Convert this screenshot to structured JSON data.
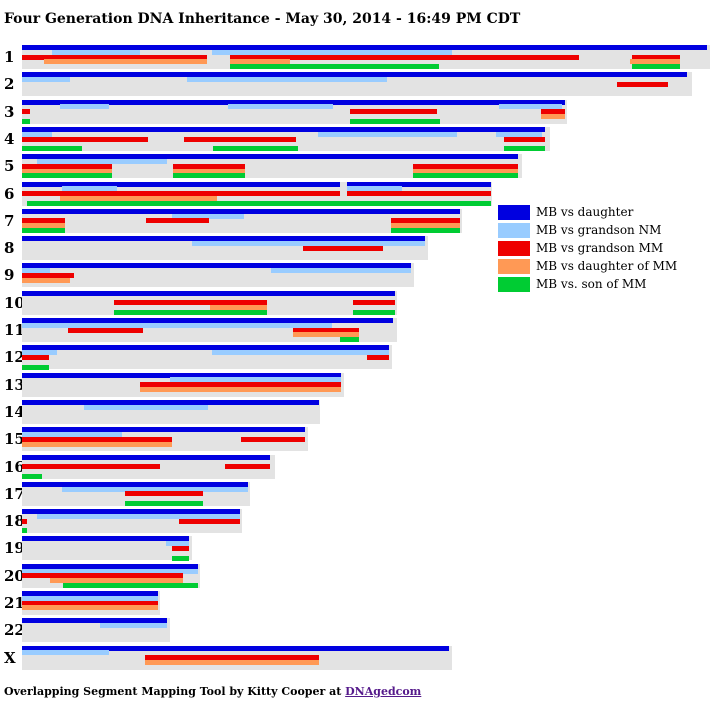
{
  "title": "Four Generation DNA Inheritance - May 30, 2014 - 16:49 PM CDT",
  "footer": {
    "text": "Overlapping Segment Mapping Tool by Kitty Cooper at ",
    "link": "DNAgedcom"
  },
  "colors": {
    "bg": "#e3e3e3",
    "daughter": "#0000e0",
    "grandson_nm": "#99ccff",
    "grandson_mm": "#ee0000",
    "daughter_of_mm": "#ff9955",
    "son_of_mm": "#00cc33"
  },
  "legend": [
    {
      "label": "MB vs daughter",
      "color": "#0000e0"
    },
    {
      "label": "MB vs grandson NM",
      "color": "#99ccff"
    },
    {
      "label": "MB vs grandson MM",
      "color": "#ee0000"
    },
    {
      "label": "MB vs daughter of MM",
      "color": "#ff9955"
    },
    {
      "label": "MB vs. son of MM",
      "color": "#00cc33"
    }
  ],
  "chart_data": {
    "type": "segment-map",
    "chromosomes": [
      {
        "label": "1",
        "length": 688,
        "segments": [
          {
            "s": 0,
            "e": 685,
            "r": 0,
            "c": "daughter"
          },
          {
            "s": 30,
            "e": 118,
            "r": 1,
            "c": "grandson_nm"
          },
          {
            "s": 190,
            "e": 430,
            "r": 1,
            "c": "grandson_nm"
          },
          {
            "s": 0,
            "e": 185,
            "r": 2,
            "c": "grandson_mm"
          },
          {
            "s": 208,
            "e": 557,
            "r": 2,
            "c": "grandson_mm"
          },
          {
            "s": 610,
            "e": 658,
            "r": 2,
            "c": "grandson_mm"
          },
          {
            "s": 22,
            "e": 185,
            "r": 3,
            "c": "daughter_of_mm"
          },
          {
            "s": 208,
            "e": 268,
            "r": 3,
            "c": "daughter_of_mm"
          },
          {
            "s": 608,
            "e": 658,
            "r": 3,
            "c": "daughter_of_mm"
          },
          {
            "s": 208,
            "e": 417,
            "r": 4,
            "c": "son_of_mm"
          },
          {
            "s": 610,
            "e": 658,
            "r": 4,
            "c": "son_of_mm"
          }
        ]
      },
      {
        "label": "2",
        "length": 670,
        "segments": [
          {
            "s": 0,
            "e": 665,
            "r": 0,
            "c": "daughter"
          },
          {
            "s": 0,
            "e": 48,
            "r": 1,
            "c": "grandson_nm"
          },
          {
            "s": 165,
            "e": 365,
            "r": 1,
            "c": "grandson_nm"
          },
          {
            "s": 595,
            "e": 646,
            "r": 2,
            "c": "grandson_mm"
          }
        ]
      },
      {
        "label": "3",
        "length": 545,
        "segments": [
          {
            "s": 0,
            "e": 543,
            "r": 0,
            "c": "daughter"
          },
          {
            "s": 38,
            "e": 87,
            "r": 1,
            "c": "grandson_nm"
          },
          {
            "s": 206,
            "e": 311,
            "r": 1,
            "c": "grandson_nm"
          },
          {
            "s": 477,
            "e": 540,
            "r": 1,
            "c": "grandson_nm"
          },
          {
            "s": 0,
            "e": 8,
            "r": 2,
            "c": "grandson_mm"
          },
          {
            "s": 328,
            "e": 415,
            "r": 2,
            "c": "grandson_mm"
          },
          {
            "s": 519,
            "e": 543,
            "r": 2,
            "c": "grandson_mm"
          },
          {
            "s": 519,
            "e": 543,
            "r": 3,
            "c": "daughter_of_mm"
          },
          {
            "s": 0,
            "e": 8,
            "r": 4,
            "c": "son_of_mm"
          },
          {
            "s": 328,
            "e": 418,
            "r": 4,
            "c": "son_of_mm"
          }
        ]
      },
      {
        "label": "4",
        "length": 528,
        "segments": [
          {
            "s": 0,
            "e": 523,
            "r": 0,
            "c": "daughter"
          },
          {
            "s": 0,
            "e": 30,
            "r": 1,
            "c": "grandson_nm"
          },
          {
            "s": 296,
            "e": 435,
            "r": 1,
            "c": "grandson_nm"
          },
          {
            "s": 474,
            "e": 520,
            "r": 1,
            "c": "grandson_nm"
          },
          {
            "s": 0,
            "e": 126,
            "r": 2,
            "c": "grandson_mm"
          },
          {
            "s": 162,
            "e": 274,
            "r": 2,
            "c": "grandson_mm"
          },
          {
            "s": 482,
            "e": 523,
            "r": 2,
            "c": "grandson_mm"
          },
          {
            "s": 0,
            "e": 60,
            "r": 4,
            "c": "son_of_mm"
          },
          {
            "s": 191,
            "e": 276,
            "r": 4,
            "c": "son_of_mm"
          },
          {
            "s": 482,
            "e": 523,
            "r": 4,
            "c": "son_of_mm"
          }
        ]
      },
      {
        "label": "5",
        "length": 500,
        "segments": [
          {
            "s": 0,
            "e": 496,
            "r": 0,
            "c": "daughter"
          },
          {
            "s": 15,
            "e": 145,
            "r": 1,
            "c": "grandson_nm"
          },
          {
            "s": 0,
            "e": 90,
            "r": 2,
            "c": "grandson_mm"
          },
          {
            "s": 151,
            "e": 223,
            "r": 2,
            "c": "grandson_mm"
          },
          {
            "s": 391,
            "e": 496,
            "r": 2,
            "c": "grandson_mm"
          },
          {
            "s": 0,
            "e": 90,
            "r": 3,
            "c": "daughter_of_mm"
          },
          {
            "s": 151,
            "e": 223,
            "r": 3,
            "c": "daughter_of_mm"
          },
          {
            "s": 391,
            "e": 496,
            "r": 3,
            "c": "daughter_of_mm"
          },
          {
            "s": 0,
            "e": 90,
            "r": 4,
            "c": "son_of_mm"
          },
          {
            "s": 151,
            "e": 223,
            "r": 4,
            "c": "son_of_mm"
          },
          {
            "s": 391,
            "e": 496,
            "r": 4,
            "c": "son_of_mm"
          }
        ]
      },
      {
        "label": "6",
        "length": 470,
        "segments": [
          {
            "s": 0,
            "e": 318,
            "r": 0,
            "c": "daughter"
          },
          {
            "s": 325,
            "e": 469,
            "r": 0,
            "c": "daughter"
          },
          {
            "s": 40,
            "e": 95,
            "r": 1,
            "c": "grandson_nm"
          },
          {
            "s": 325,
            "e": 380,
            "r": 1,
            "c": "grandson_nm"
          },
          {
            "s": 0,
            "e": 318,
            "r": 2,
            "c": "grandson_mm"
          },
          {
            "s": 325,
            "e": 469,
            "r": 2,
            "c": "grandson_mm"
          },
          {
            "s": 38,
            "e": 195,
            "r": 3,
            "c": "daughter_of_mm"
          },
          {
            "s": 5,
            "e": 469,
            "r": 4,
            "c": "son_of_mm"
          }
        ]
      },
      {
        "label": "7",
        "length": 440,
        "segments": [
          {
            "s": 0,
            "e": 438,
            "r": 0,
            "c": "daughter"
          },
          {
            "s": 150,
            "e": 222,
            "r": 1,
            "c": "grandson_nm"
          },
          {
            "s": 0,
            "e": 43,
            "r": 2,
            "c": "grandson_mm"
          },
          {
            "s": 124,
            "e": 187,
            "r": 2,
            "c": "grandson_mm"
          },
          {
            "s": 369,
            "e": 438,
            "r": 2,
            "c": "grandson_mm"
          },
          {
            "s": 0,
            "e": 43,
            "r": 3,
            "c": "daughter_of_mm"
          },
          {
            "s": 369,
            "e": 438,
            "r": 3,
            "c": "daughter_of_mm"
          },
          {
            "s": 0,
            "e": 43,
            "r": 4,
            "c": "son_of_mm"
          },
          {
            "s": 369,
            "e": 438,
            "r": 4,
            "c": "son_of_mm"
          }
        ]
      },
      {
        "label": "8",
        "length": 406,
        "segments": [
          {
            "s": 0,
            "e": 403,
            "r": 0,
            "c": "daughter"
          },
          {
            "s": 170,
            "e": 403,
            "r": 1,
            "c": "grandson_nm"
          },
          {
            "s": 281,
            "e": 361,
            "r": 2,
            "c": "grandson_mm"
          }
        ]
      },
      {
        "label": "9",
        "length": 392,
        "segments": [
          {
            "s": 0,
            "e": 389,
            "r": 0,
            "c": "daughter"
          },
          {
            "s": 0,
            "e": 28,
            "r": 1,
            "c": "grandson_nm"
          },
          {
            "s": 249,
            "e": 389,
            "r": 1,
            "c": "grandson_nm"
          },
          {
            "s": 0,
            "e": 52,
            "r": 2,
            "c": "grandson_mm"
          },
          {
            "s": 0,
            "e": 48,
            "r": 3,
            "c": "daughter_of_mm"
          }
        ]
      },
      {
        "label": "10",
        "length": 375,
        "segments": [
          {
            "s": 0,
            "e": 373,
            "r": 0,
            "c": "daughter"
          },
          {
            "s": 92,
            "e": 245,
            "r": 2,
            "c": "grandson_mm"
          },
          {
            "s": 331,
            "e": 373,
            "r": 2,
            "c": "grandson_mm"
          },
          {
            "s": 188,
            "e": 245,
            "r": 3,
            "c": "daughter_of_mm"
          },
          {
            "s": 92,
            "e": 245,
            "r": 4,
            "c": "son_of_mm"
          },
          {
            "s": 331,
            "e": 373,
            "r": 4,
            "c": "son_of_mm"
          }
        ]
      },
      {
        "label": "11",
        "length": 375,
        "segments": [
          {
            "s": 0,
            "e": 371,
            "r": 0,
            "c": "daughter"
          },
          {
            "s": 0,
            "e": 310,
            "r": 1,
            "c": "grandson_nm"
          },
          {
            "s": 46,
            "e": 121,
            "r": 2,
            "c": "grandson_mm"
          },
          {
            "s": 271,
            "e": 337,
            "r": 2,
            "c": "grandson_mm"
          },
          {
            "s": 271,
            "e": 337,
            "r": 3,
            "c": "daughter_of_mm"
          },
          {
            "s": 318,
            "e": 337,
            "r": 4,
            "c": "son_of_mm"
          }
        ]
      },
      {
        "label": "12",
        "length": 370,
        "segments": [
          {
            "s": 0,
            "e": 367,
            "r": 0,
            "c": "daughter"
          },
          {
            "s": 0,
            "e": 35,
            "r": 1,
            "c": "grandson_nm"
          },
          {
            "s": 190,
            "e": 367,
            "r": 1,
            "c": "grandson_nm"
          },
          {
            "s": 0,
            "e": 27,
            "r": 2,
            "c": "grandson_mm"
          },
          {
            "s": 345,
            "e": 367,
            "r": 2,
            "c": "grandson_mm"
          },
          {
            "s": 0,
            "e": 27,
            "r": 4,
            "c": "son_of_mm"
          }
        ]
      },
      {
        "label": "13",
        "length": 322,
        "segments": [
          {
            "s": 0,
            "e": 319,
            "r": 0,
            "c": "daughter"
          },
          {
            "s": 148,
            "e": 319,
            "r": 1,
            "c": "grandson_nm"
          },
          {
            "s": 118,
            "e": 319,
            "r": 2,
            "c": "grandson_mm"
          },
          {
            "s": 118,
            "e": 319,
            "r": 3,
            "c": "daughter_of_mm"
          }
        ]
      },
      {
        "label": "14",
        "length": 298,
        "segments": [
          {
            "s": 0,
            "e": 297,
            "r": 0,
            "c": "daughter"
          },
          {
            "s": 62,
            "e": 186,
            "r": 1,
            "c": "grandson_nm"
          }
        ]
      },
      {
        "label": "15",
        "length": 286,
        "segments": [
          {
            "s": 0,
            "e": 283,
            "r": 0,
            "c": "daughter"
          },
          {
            "s": 0,
            "e": 100,
            "r": 1,
            "c": "grandson_nm"
          },
          {
            "s": 0,
            "e": 150,
            "r": 2,
            "c": "grandson_mm"
          },
          {
            "s": 219,
            "e": 283,
            "r": 2,
            "c": "grandson_mm"
          },
          {
            "s": 0,
            "e": 150,
            "r": 3,
            "c": "daughter_of_mm"
          }
        ]
      },
      {
        "label": "16",
        "length": 253,
        "segments": [
          {
            "s": 0,
            "e": 248,
            "r": 0,
            "c": "daughter"
          },
          {
            "s": 0,
            "e": 138,
            "r": 2,
            "c": "grandson_mm"
          },
          {
            "s": 203,
            "e": 248,
            "r": 2,
            "c": "grandson_mm"
          },
          {
            "s": 0,
            "e": 20,
            "r": 4,
            "c": "son_of_mm"
          }
        ]
      },
      {
        "label": "17",
        "length": 228,
        "segments": [
          {
            "s": 0,
            "e": 226,
            "r": 0,
            "c": "daughter"
          },
          {
            "s": 40,
            "e": 226,
            "r": 1,
            "c": "grandson_nm"
          },
          {
            "s": 103,
            "e": 181,
            "r": 2,
            "c": "grandson_mm"
          },
          {
            "s": 103,
            "e": 181,
            "r": 4,
            "c": "son_of_mm"
          }
        ]
      },
      {
        "label": "18",
        "length": 220,
        "segments": [
          {
            "s": 0,
            "e": 218,
            "r": 0,
            "c": "daughter"
          },
          {
            "s": 15,
            "e": 218,
            "r": 1,
            "c": "grandson_nm"
          },
          {
            "s": 0,
            "e": 5,
            "r": 2,
            "c": "grandson_mm"
          },
          {
            "s": 157,
            "e": 218,
            "r": 2,
            "c": "grandson_mm"
          },
          {
            "s": 0,
            "e": 5,
            "r": 4,
            "c": "son_of_mm"
          }
        ]
      },
      {
        "label": "19",
        "length": 170,
        "segments": [
          {
            "s": 0,
            "e": 167,
            "r": 0,
            "c": "daughter"
          },
          {
            "s": 144,
            "e": 167,
            "r": 1,
            "c": "grandson_nm"
          },
          {
            "s": 150,
            "e": 167,
            "r": 2,
            "c": "grandson_mm"
          },
          {
            "s": 150,
            "e": 167,
            "r": 4,
            "c": "son_of_mm"
          }
        ]
      },
      {
        "label": "20",
        "length": 178,
        "segments": [
          {
            "s": 0,
            "e": 176,
            "r": 0,
            "c": "daughter"
          },
          {
            "s": 0,
            "e": 176,
            "r": 1,
            "c": "grandson_nm"
          },
          {
            "s": 0,
            "e": 161,
            "r": 2,
            "c": "grandson_mm"
          },
          {
            "s": 28,
            "e": 161,
            "r": 3,
            "c": "daughter_of_mm"
          },
          {
            "s": 41,
            "e": 176,
            "r": 4,
            "c": "son_of_mm"
          }
        ]
      },
      {
        "label": "21",
        "length": 138,
        "segments": [
          {
            "s": 0,
            "e": 136,
            "r": 0,
            "c": "daughter"
          },
          {
            "s": 0,
            "e": 136,
            "r": 1,
            "c": "grandson_nm"
          },
          {
            "s": 0,
            "e": 136,
            "r": 2,
            "c": "grandson_mm"
          },
          {
            "s": 0,
            "e": 136,
            "r": 3,
            "c": "daughter_of_mm"
          }
        ]
      },
      {
        "label": "22",
        "length": 148,
        "segments": [
          {
            "s": 0,
            "e": 145,
            "r": 0,
            "c": "daughter"
          },
          {
            "s": 78,
            "e": 145,
            "r": 1,
            "c": "grandson_nm"
          }
        ]
      },
      {
        "label": "X",
        "length": 430,
        "segments": [
          {
            "s": 0,
            "e": 427,
            "r": 0,
            "c": "daughter"
          },
          {
            "s": 0,
            "e": 87,
            "r": 1,
            "c": "grandson_nm"
          },
          {
            "s": 123,
            "e": 297,
            "r": 2,
            "c": "grandson_mm"
          },
          {
            "s": 123,
            "e": 297,
            "r": 3,
            "c": "daughter_of_mm"
          }
        ]
      }
    ]
  }
}
